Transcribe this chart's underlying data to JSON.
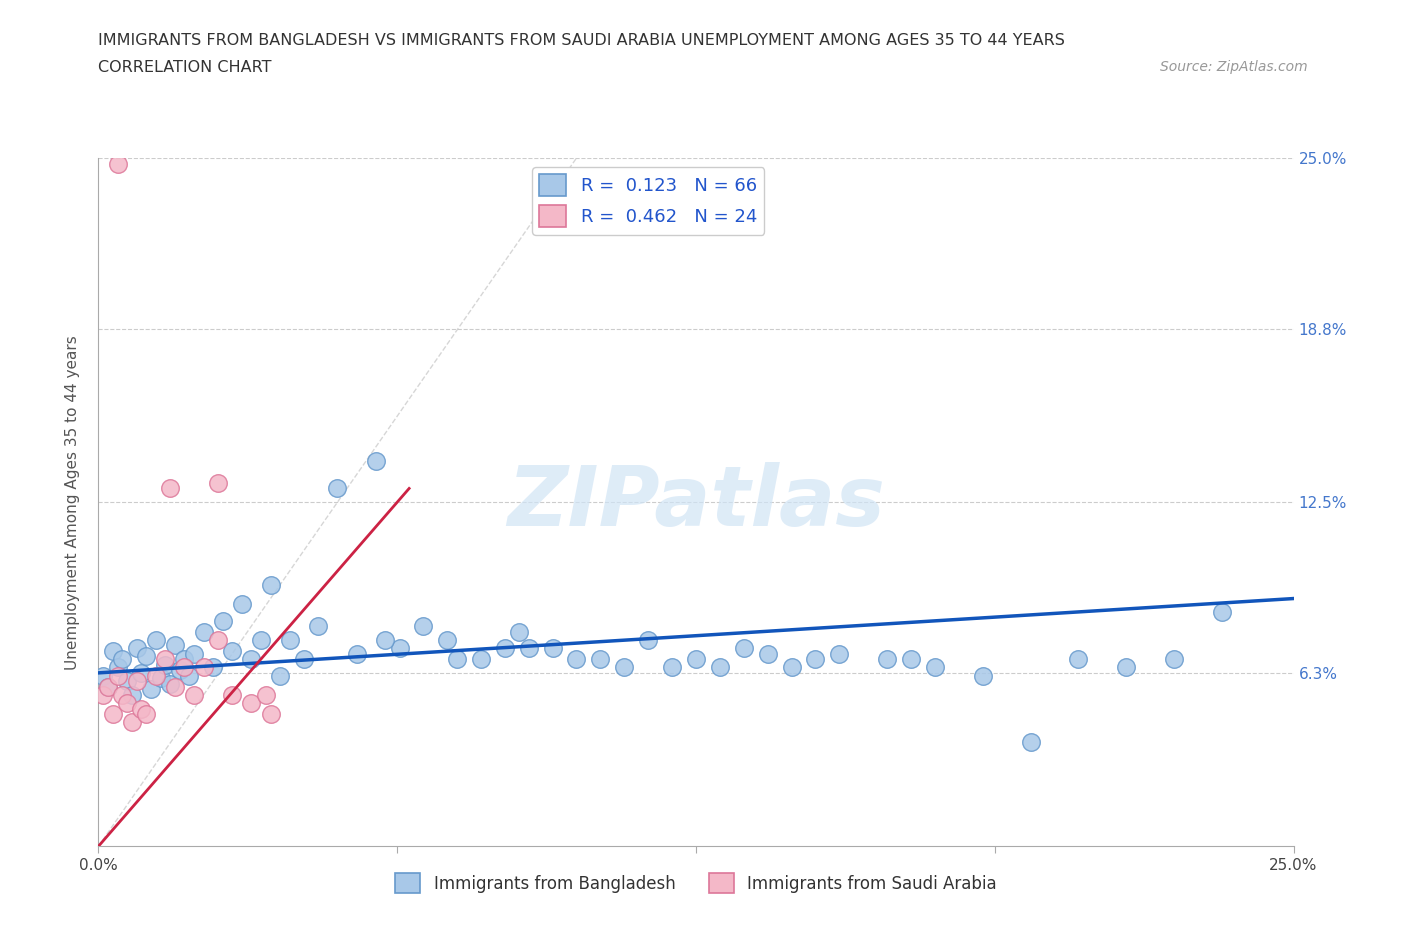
{
  "title_line1": "IMMIGRANTS FROM BANGLADESH VS IMMIGRANTS FROM SAUDI ARABIA UNEMPLOYMENT AMONG AGES 35 TO 44 YEARS",
  "title_line2": "CORRELATION CHART",
  "source_text": "Source: ZipAtlas.com",
  "ylabel": "Unemployment Among Ages 35 to 44 years",
  "xlim": [
    0.0,
    0.25
  ],
  "ylim": [
    0.0,
    0.25
  ],
  "ytick_positions": [
    0.063,
    0.125,
    0.188,
    0.25
  ],
  "ytick_labels": [
    "6.3%",
    "12.5%",
    "18.8%",
    "25.0%"
  ],
  "xtick_positions": [
    0.0,
    0.0625,
    0.125,
    0.1875,
    0.25
  ],
  "xtick_labels": [
    "0.0%",
    "",
    "",
    "",
    "25.0%"
  ],
  "bangladesh_color": "#a8c8e8",
  "bangladesh_edge": "#6699cc",
  "saudi_color": "#f4b8c8",
  "saudi_edge": "#dd7799",
  "trendline_bd_color": "#1155bb",
  "trendline_sa_color": "#cc2244",
  "legend_r_bd": "0.123",
  "legend_n_bd": "66",
  "legend_r_sa": "0.462",
  "legend_n_sa": "24",
  "legend_text_color": "#2255cc",
  "watermark_color": "#d0e4f5",
  "bd_x": [
    0.001,
    0.002,
    0.003,
    0.004,
    0.005,
    0.006,
    0.007,
    0.008,
    0.009,
    0.01,
    0.011,
    0.012,
    0.013,
    0.014,
    0.015,
    0.016,
    0.017,
    0.018,
    0.019,
    0.02,
    0.022,
    0.024,
    0.026,
    0.028,
    0.03,
    0.032,
    0.034,
    0.036,
    0.038,
    0.04,
    0.043,
    0.046,
    0.05,
    0.054,
    0.058,
    0.063,
    0.068,
    0.073,
    0.08,
    0.088,
    0.095,
    0.105,
    0.115,
    0.125,
    0.135,
    0.145,
    0.155,
    0.165,
    0.175,
    0.185,
    0.195,
    0.205,
    0.215,
    0.225,
    0.235,
    0.13,
    0.15,
    0.09,
    0.11,
    0.17,
    0.06,
    0.075,
    0.085,
    0.1,
    0.12,
    0.14
  ],
  "bd_y": [
    0.062,
    0.058,
    0.071,
    0.065,
    0.068,
    0.06,
    0.055,
    0.072,
    0.063,
    0.069,
    0.057,
    0.075,
    0.061,
    0.066,
    0.059,
    0.073,
    0.064,
    0.068,
    0.062,
    0.07,
    0.078,
    0.065,
    0.082,
    0.071,
    0.088,
    0.068,
    0.075,
    0.095,
    0.062,
    0.075,
    0.068,
    0.08,
    0.13,
    0.07,
    0.14,
    0.072,
    0.08,
    0.075,
    0.068,
    0.078,
    0.072,
    0.068,
    0.075,
    0.068,
    0.072,
    0.065,
    0.07,
    0.068,
    0.065,
    0.062,
    0.038,
    0.068,
    0.065,
    0.068,
    0.085,
    0.065,
    0.068,
    0.072,
    0.065,
    0.068,
    0.075,
    0.068,
    0.072,
    0.068,
    0.065,
    0.07
  ],
  "sa_x": [
    0.001,
    0.002,
    0.003,
    0.004,
    0.005,
    0.006,
    0.007,
    0.008,
    0.009,
    0.01,
    0.012,
    0.014,
    0.016,
    0.018,
    0.02,
    0.022,
    0.025,
    0.028,
    0.032,
    0.036,
    0.015,
    0.025,
    0.035,
    0.004
  ],
  "sa_y": [
    0.055,
    0.058,
    0.048,
    0.062,
    0.055,
    0.052,
    0.045,
    0.06,
    0.05,
    0.048,
    0.062,
    0.068,
    0.058,
    0.065,
    0.055,
    0.065,
    0.075,
    0.055,
    0.052,
    0.048,
    0.13,
    0.132,
    0.055,
    0.248
  ]
}
